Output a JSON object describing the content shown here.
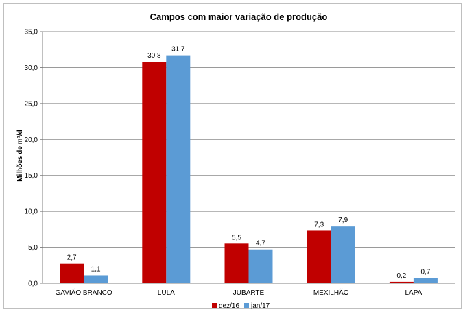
{
  "chart_data": {
    "type": "bar",
    "title": "Campos com maior variação de produção",
    "xlabel": "",
    "ylabel": "Milhões de m³/d",
    "categories": [
      "GAVIÃO BRANCO",
      "LULA",
      "JUBARTE",
      "MEXILHÃO",
      "LAPA"
    ],
    "series": [
      {
        "name": "dez/16",
        "color": "#c00000",
        "values": [
          2.7,
          30.8,
          5.5,
          7.3,
          0.2
        ],
        "labels": [
          "2,7",
          "30,8",
          "5,5",
          "7,3",
          "0,2"
        ]
      },
      {
        "name": "jan/17",
        "color": "#5b9bd5",
        "values": [
          1.1,
          31.7,
          4.7,
          7.9,
          0.7
        ],
        "labels": [
          "1,1",
          "31,7",
          "4,7",
          "7,9",
          "0,7"
        ]
      }
    ],
    "ylim": [
      0,
      35
    ],
    "yticks": [
      0,
      5,
      10,
      15,
      20,
      25,
      30,
      35
    ],
    "ytick_labels": [
      "0,0",
      "5,0",
      "10,0",
      "15,0",
      "20,0",
      "25,0",
      "30,0",
      "35,0"
    ],
    "grid": true,
    "legend_position": "bottom"
  }
}
